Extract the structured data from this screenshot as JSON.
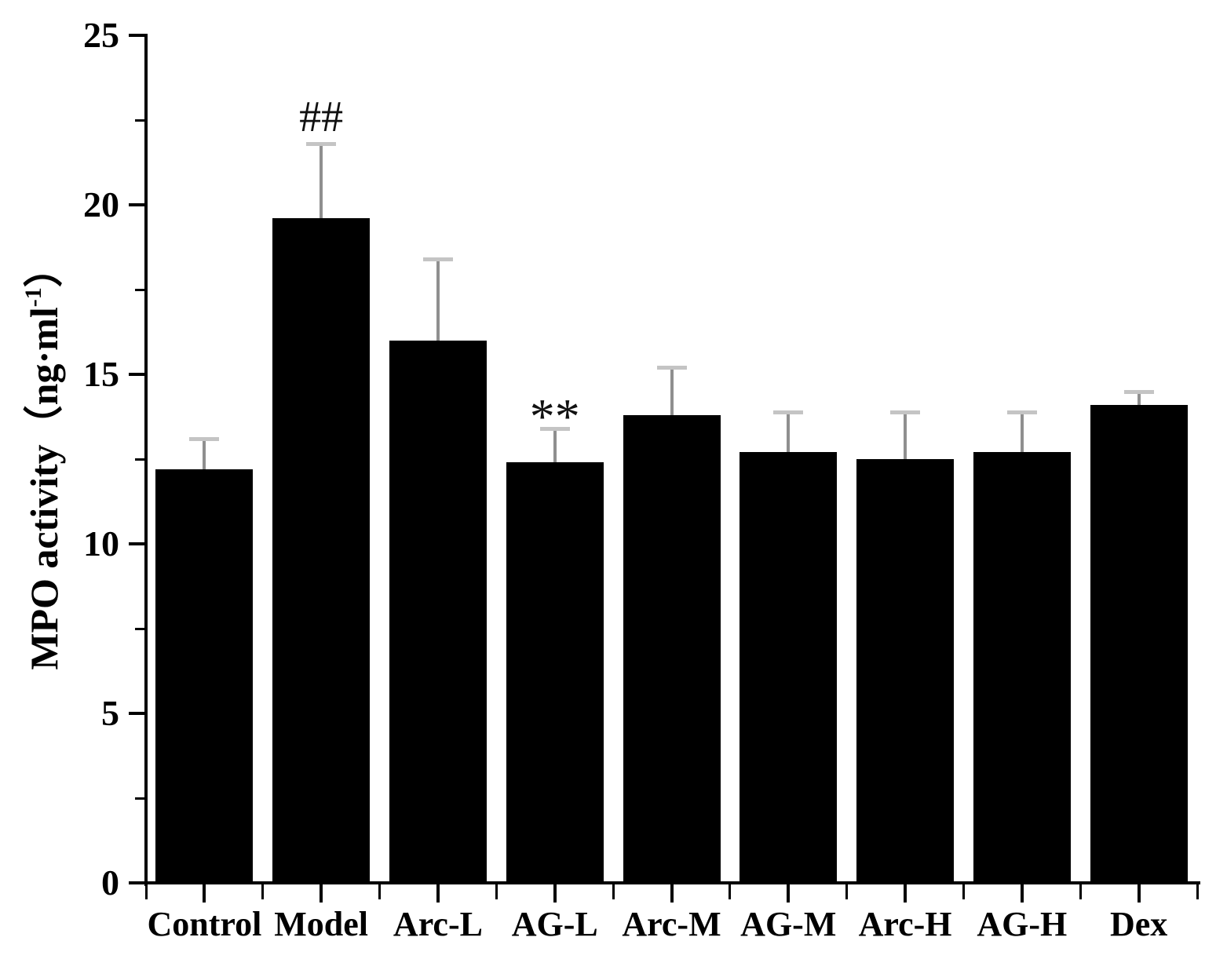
{
  "chart_data": {
    "type": "bar",
    "title": "",
    "categories": [
      "Control",
      "Model",
      "Arc-L",
      "AG-L",
      "Arc-M",
      "AG-M",
      "Arc-H",
      "AG-H",
      "Dex"
    ],
    "values": [
      12.2,
      19.6,
      16.0,
      12.4,
      13.8,
      12.7,
      12.5,
      12.7,
      14.1
    ],
    "errors": [
      0.9,
      2.2,
      2.4,
      1.0,
      1.4,
      1.2,
      1.4,
      1.2,
      0.4
    ],
    "error_direction": "up",
    "annotations": [
      {
        "category": "Model",
        "text": "##"
      },
      {
        "category": "AG-L",
        "text": "**"
      }
    ],
    "ylabel": {
      "full": "MPO activity（ng·ml-1）",
      "prefix": "MPO activity（ng·ml",
      "sup": "-1",
      "suffix": "）"
    },
    "xlabel": "",
    "ylim": [
      0,
      25
    ],
    "yticks": [
      "0",
      "5",
      "10",
      "15",
      "20",
      "25"
    ],
    "yminor_step": 2.5,
    "grid": "off",
    "legend": "none",
    "colors": {
      "bar": "#000000",
      "error_stem": "#8f8f8f",
      "error_cap": "#c4c4c4",
      "axis": "#000000",
      "text": "#000000",
      "background": "#ffffff"
    }
  }
}
